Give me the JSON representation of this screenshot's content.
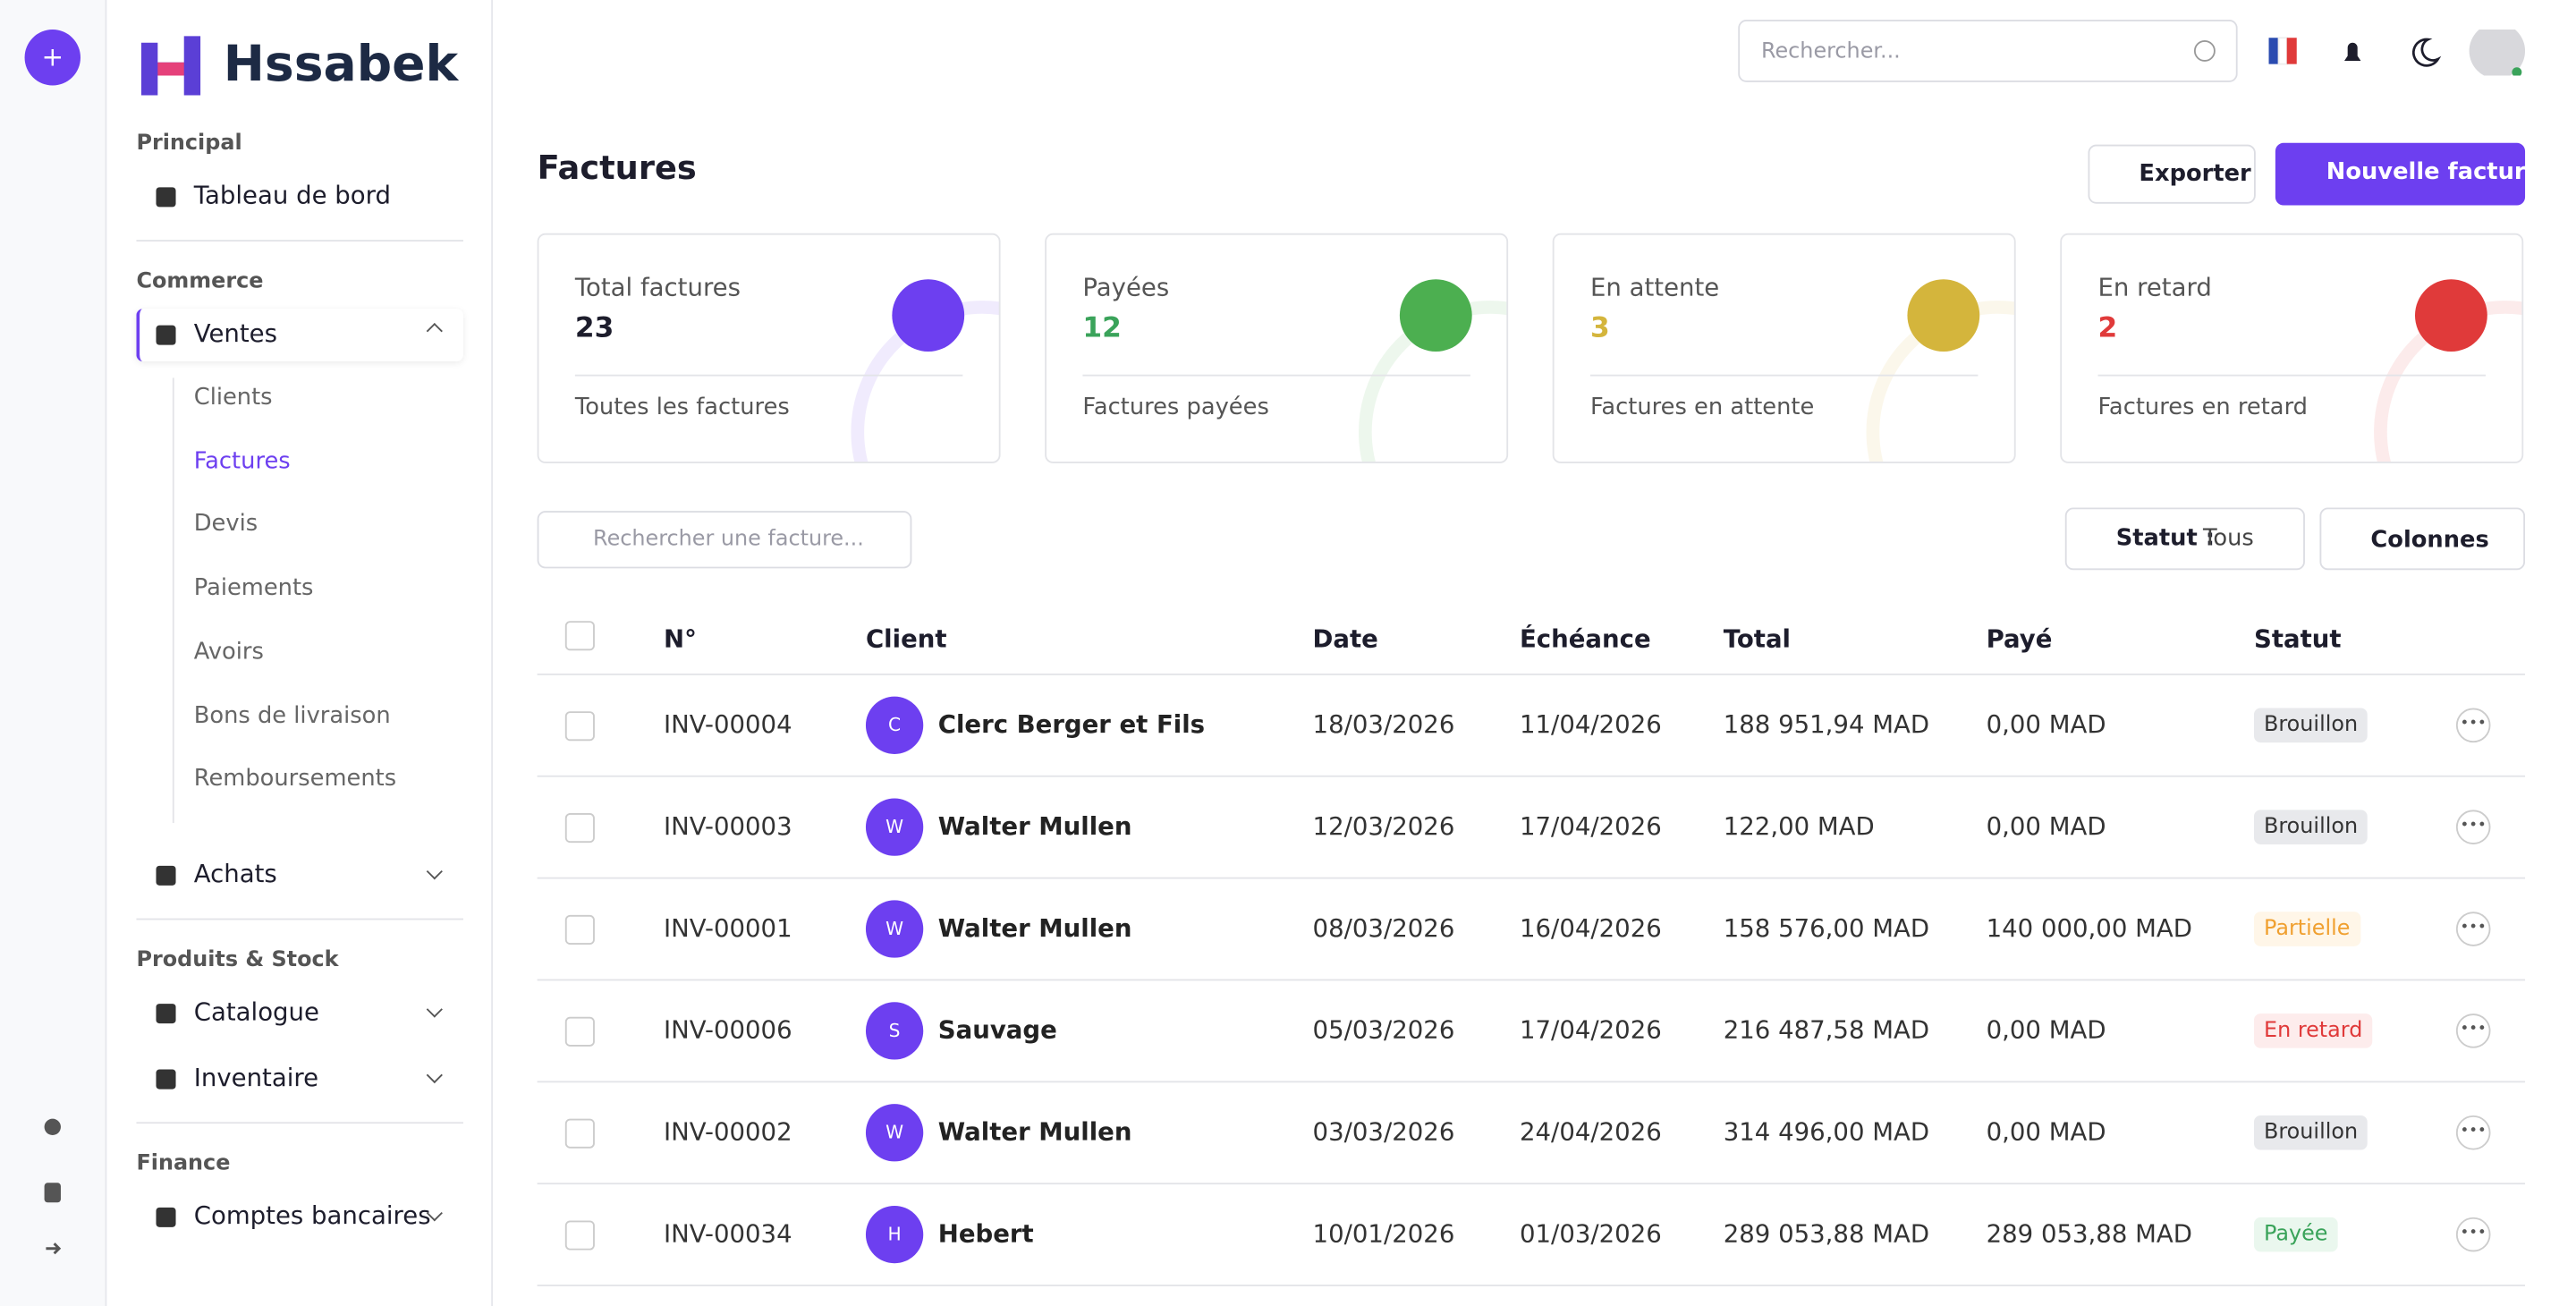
{
  "brand": "Hssabek",
  "topbar": {
    "search": "Rechercher..."
  },
  "sidebar": {
    "sections": [
      {
        "title": "Principal",
        "items": [
          {
            "label": "Tableau de bord"
          }
        ]
      },
      {
        "title": "Commerce",
        "items": [
          {
            "label": "Ventes",
            "children": [
              "Clients",
              "Factures",
              "Devis",
              "Paiements",
              "Avoirs",
              "Bons de livraison",
              "Remboursements"
            ]
          },
          {
            "label": "Achats"
          }
        ]
      },
      {
        "title": "Produits & Stock",
        "items": [
          {
            "label": "Catalogue"
          },
          {
            "label": "Inventaire"
          }
        ]
      },
      {
        "title": "Finance",
        "items": [
          {
            "label": "Comptes bancaires"
          }
        ]
      }
    ]
  },
  "header": {
    "title": "Factures",
    "export": "Exporter",
    "new": "Nouvelle facture"
  },
  "stats": [
    {
      "label": "Total factures",
      "value": "23",
      "footer": "Toutes les factures"
    },
    {
      "label": "Payées",
      "value": "12",
      "footer": "Factures payées"
    },
    {
      "label": "En attente",
      "value": "3",
      "footer": "Factures en attente"
    },
    {
      "label": "En retard",
      "value": "2",
      "footer": "Factures en retard"
    }
  ],
  "toolbar": {
    "search": "Rechercher une facture...",
    "status_label": "Statut :",
    "status_value": "Tous",
    "columns": "Colonnes"
  },
  "table": {
    "headers": [
      "N°",
      "Client",
      "Date",
      "Échéance",
      "Total",
      "Payé",
      "Statut"
    ],
    "rows": [
      [
        "INV-00004",
        "C",
        "Clerc Berger et Fils",
        "18/03/2026",
        "11/04/2026",
        "188 951,94 MAD",
        "0,00 MAD",
        "Brouillon"
      ],
      [
        "INV-00003",
        "W",
        "Walter Mullen",
        "12/03/2026",
        "17/04/2026",
        "122,00 MAD",
        "0,00 MAD",
        "Brouillon"
      ],
      [
        "INV-00001",
        "W",
        "Walter Mullen",
        "08/03/2026",
        "16/04/2026",
        "158 576,00 MAD",
        "140 000,00 MAD",
        "Partielle"
      ],
      [
        "INV-00006",
        "S",
        "Sauvage",
        "05/03/2026",
        "17/04/2026",
        "216 487,58 MAD",
        "0,00 MAD",
        "En retard"
      ],
      [
        "INV-00002",
        "W",
        "Walter Mullen",
        "03/03/2026",
        "24/04/2026",
        "314 496,00 MAD",
        "0,00 MAD",
        "Brouillon"
      ],
      [
        "INV-00034",
        "H",
        "Hebert",
        "10/01/2026",
        "01/03/2026",
        "289 053,88 MAD",
        "289 053,88 MAD",
        "Payée"
      ]
    ]
  }
}
